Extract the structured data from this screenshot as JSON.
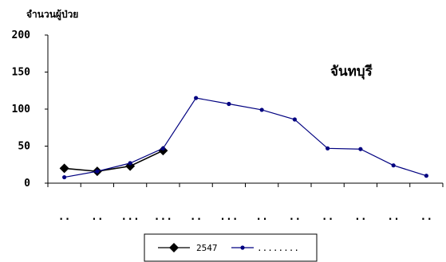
{
  "chart_data": {
    "type": "line",
    "title": "จันทบุรี",
    "ylabel": "จำนวนผู้ป่วย",
    "xlabel": "",
    "categories": [
      "..",
      "..",
      "...",
      "...",
      "..",
      "...",
      "..",
      "..",
      "..",
      "..",
      "..",
      ".."
    ],
    "yticks": [
      0,
      50,
      100,
      150,
      200
    ],
    "ylim": [
      0,
      200
    ],
    "grid": false,
    "legend_position": "bottom",
    "series": [
      {
        "name": "2547",
        "color": "#000000",
        "marker": "diamond",
        "values": [
          20,
          16,
          23,
          44,
          null,
          null,
          null,
          null,
          null,
          null,
          null,
          null
        ]
      },
      {
        "name": "........",
        "color": "#000080",
        "marker": "circle",
        "values": [
          8,
          16,
          27,
          47,
          115,
          107,
          99,
          86,
          47,
          46,
          24,
          10
        ]
      }
    ]
  }
}
